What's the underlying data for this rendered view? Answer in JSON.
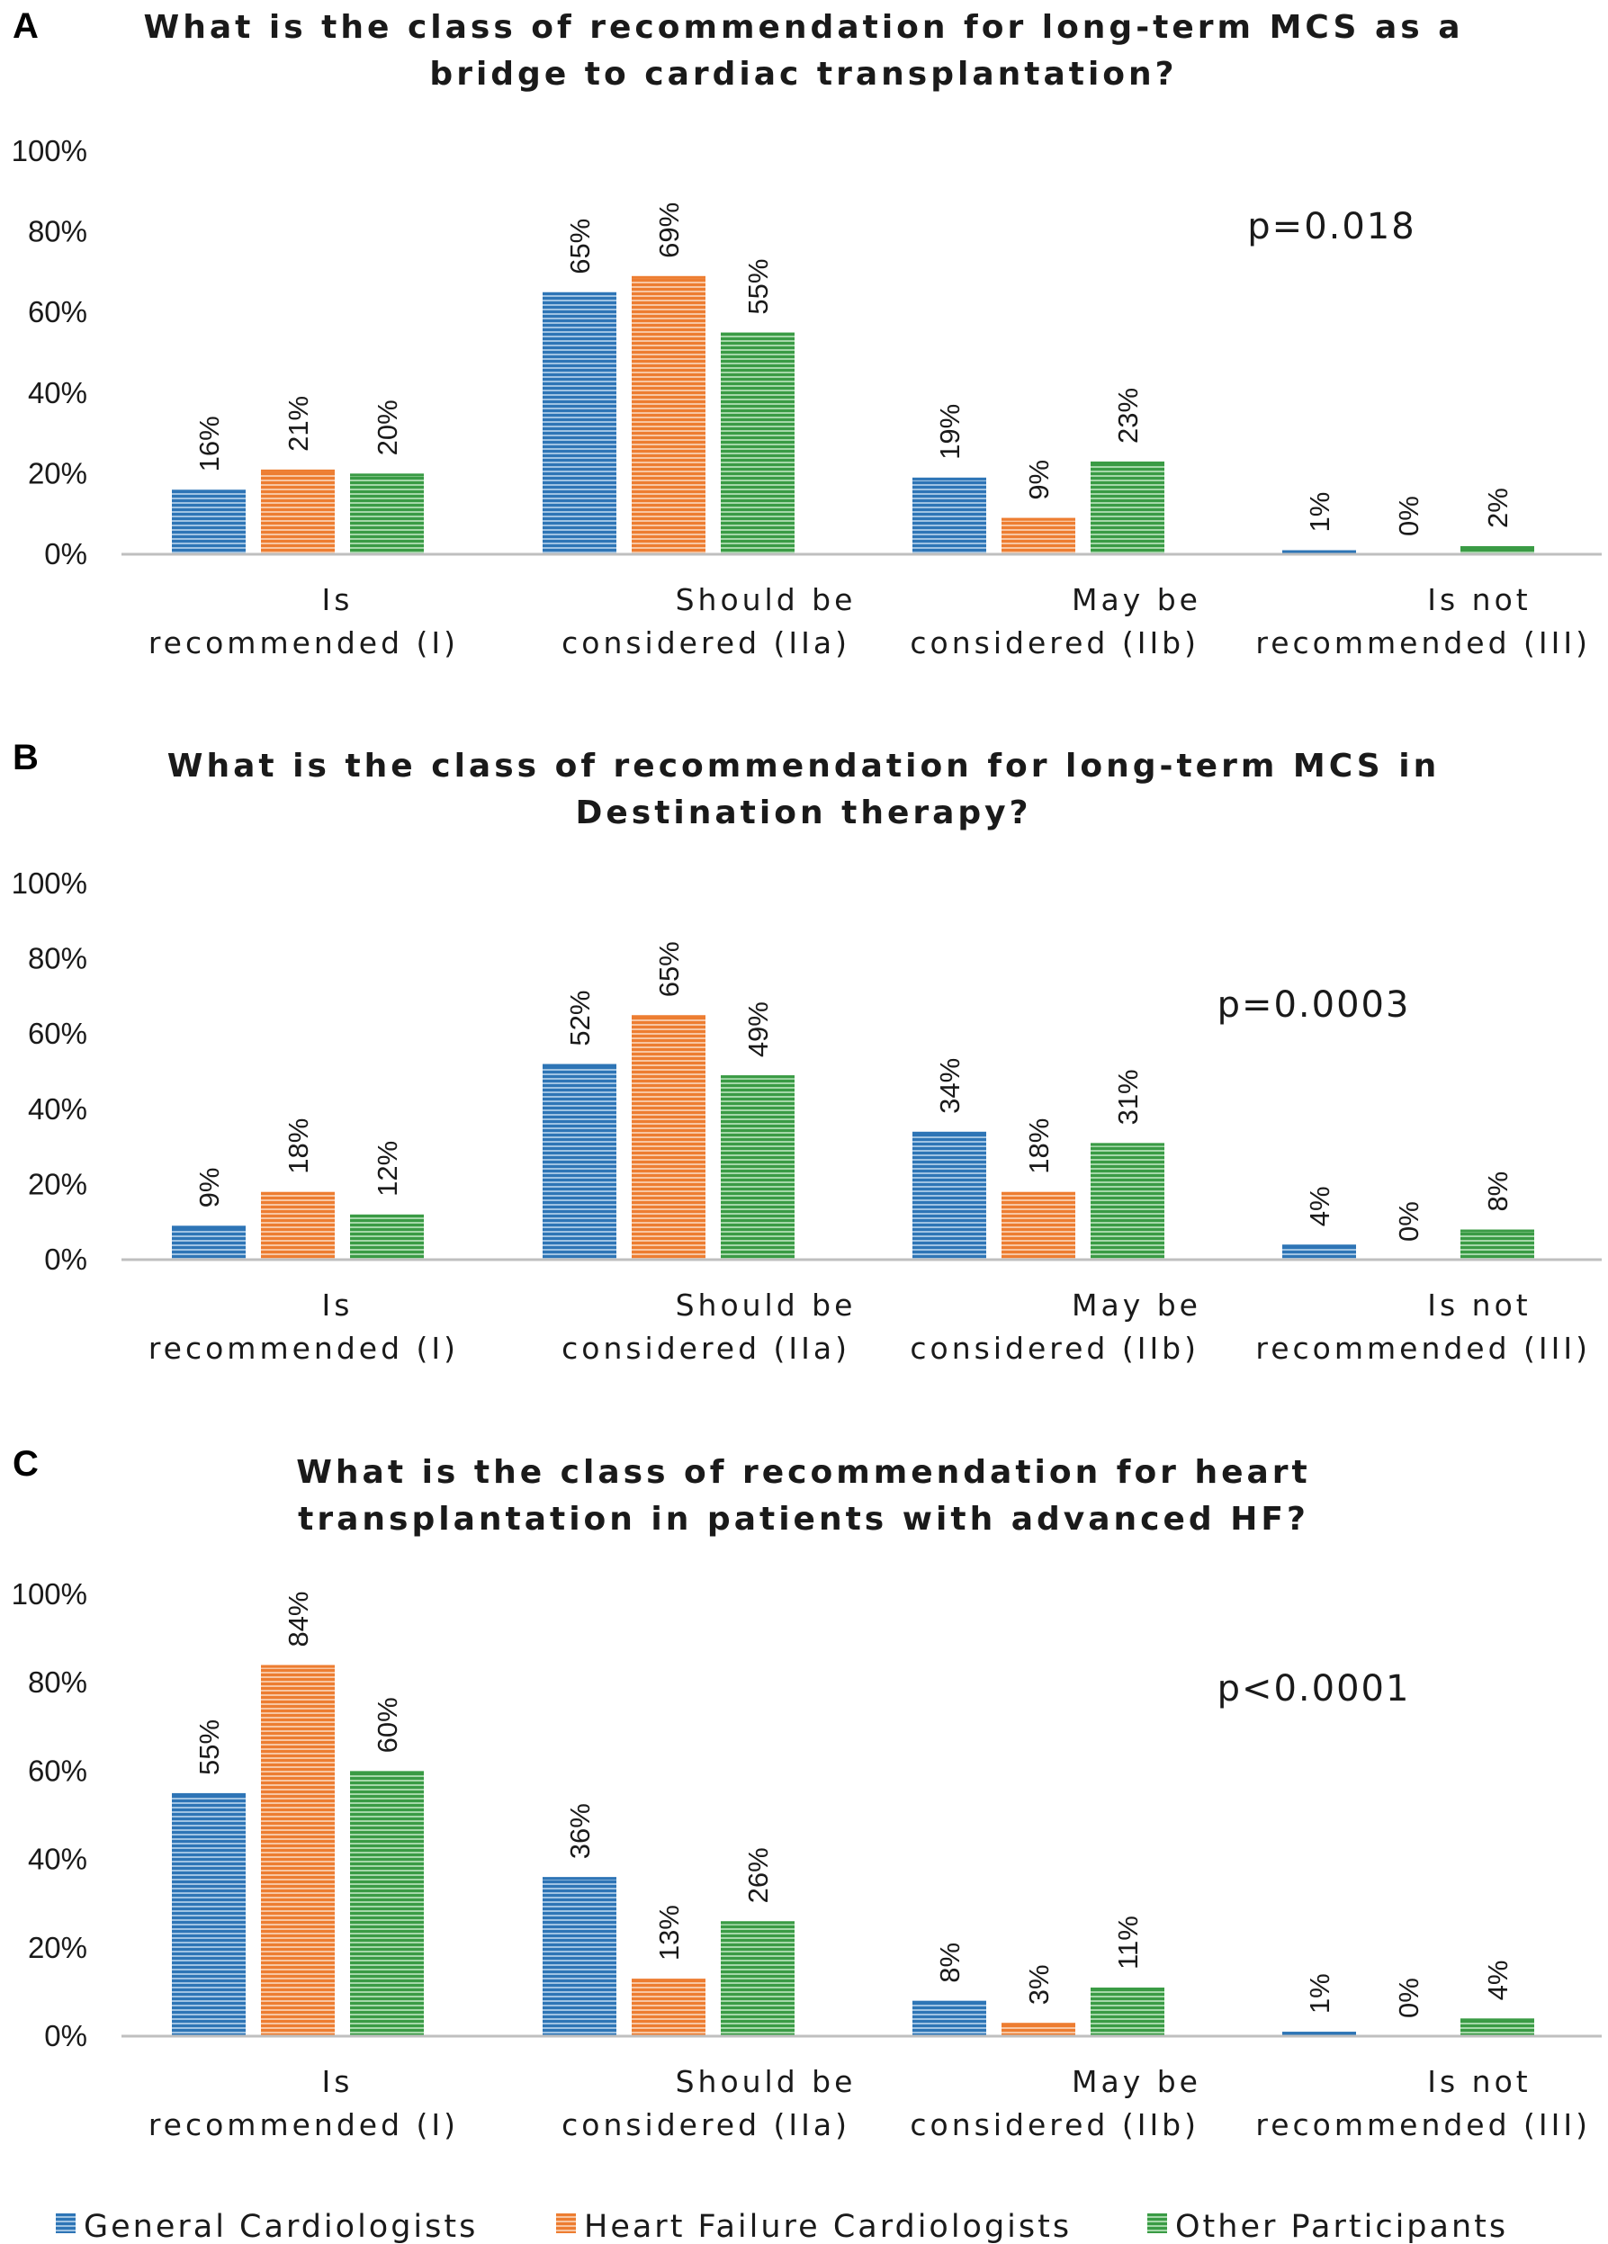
{
  "series_colors": [
    "#2e75b6",
    "#ed7d31",
    "#3a9b45"
  ],
  "legend": [
    "General Cardiologists",
    "Heart Failure Cardiologists",
    "Other Participants"
  ],
  "chart_data": [
    {
      "type": "bar",
      "panel": "A",
      "title": [
        "What is the class of recommendation for long-term MCS as a",
        "bridge to cardiac transplantation?"
      ],
      "p_value": "p=0.018",
      "categories": [
        [
          "Is",
          "recommended (I)"
        ],
        [
          "Should be",
          "considered (IIa)"
        ],
        [
          "May be",
          "considered (IIb)"
        ],
        [
          "Is not",
          "recommended (III)"
        ]
      ],
      "ylim": [
        0,
        100
      ],
      "yticks": [
        "0%",
        "20%",
        "40%",
        "60%",
        "80%",
        "100%"
      ],
      "series": [
        {
          "name": "General Cardiologists",
          "values": [
            16,
            65,
            19,
            1
          ],
          "labels": [
            "16%",
            "65%",
            "19%",
            "1%"
          ]
        },
        {
          "name": "Heart Failure Cardiologists",
          "values": [
            21,
            69,
            9,
            0
          ],
          "labels": [
            "21%",
            "69%",
            "9%",
            "0%"
          ]
        },
        {
          "name": "Other Participants",
          "values": [
            20,
            55,
            23,
            2
          ],
          "labels": [
            "20%",
            "55%",
            "23%",
            "2%"
          ]
        }
      ]
    },
    {
      "type": "bar",
      "panel": "B",
      "title": [
        "What is the class of recommendation for long-term MCS in",
        "Destination therapy?"
      ],
      "p_value": "p=0.0003",
      "categories": [
        [
          "Is",
          "recommended (I)"
        ],
        [
          "Should be",
          "considered (IIa)"
        ],
        [
          "May be",
          "considered (IIb)"
        ],
        [
          "Is not",
          "recommended (III)"
        ]
      ],
      "ylim": [
        0,
        100
      ],
      "yticks": [
        "0%",
        "20%",
        "40%",
        "60%",
        "80%",
        "100%"
      ],
      "series": [
        {
          "name": "General Cardiologists",
          "values": [
            9,
            52,
            34,
            4
          ],
          "labels": [
            "9%",
            "52%",
            "34%",
            "4%"
          ]
        },
        {
          "name": "Heart Failure Cardiologists",
          "values": [
            18,
            65,
            18,
            0
          ],
          "labels": [
            "18%",
            "65%",
            "18%",
            "0%"
          ]
        },
        {
          "name": "Other Participants",
          "values": [
            12,
            49,
            31,
            8
          ],
          "labels": [
            "12%",
            "49%",
            "31%",
            "8%"
          ]
        }
      ]
    },
    {
      "type": "bar",
      "panel": "C",
      "title": [
        "What is the class of recommendation for heart",
        "transplantation in patients with advanced HF?"
      ],
      "p_value": "p<0.0001",
      "categories": [
        [
          "Is",
          "recommended (I)"
        ],
        [
          "Should be",
          "considered (IIa)"
        ],
        [
          "May be",
          "considered (IIb)"
        ],
        [
          "Is not",
          "recommended (III)"
        ]
      ],
      "ylim": [
        0,
        100
      ],
      "yticks": [
        "0%",
        "20%",
        "40%",
        "60%",
        "80%",
        "100%"
      ],
      "series": [
        {
          "name": "General Cardiologists",
          "values": [
            55,
            36,
            8,
            1
          ],
          "labels": [
            "55%",
            "36%",
            "8%",
            "1%"
          ]
        },
        {
          "name": "Heart Failure Cardiologists",
          "values": [
            84,
            13,
            3,
            0
          ],
          "labels": [
            "84%",
            "13%",
            "3%",
            "0%"
          ]
        },
        {
          "name": "Other Participants",
          "values": [
            60,
            26,
            11,
            4
          ],
          "labels": [
            "60%",
            "26%",
            "11%",
            "4%"
          ]
        }
      ]
    }
  ]
}
